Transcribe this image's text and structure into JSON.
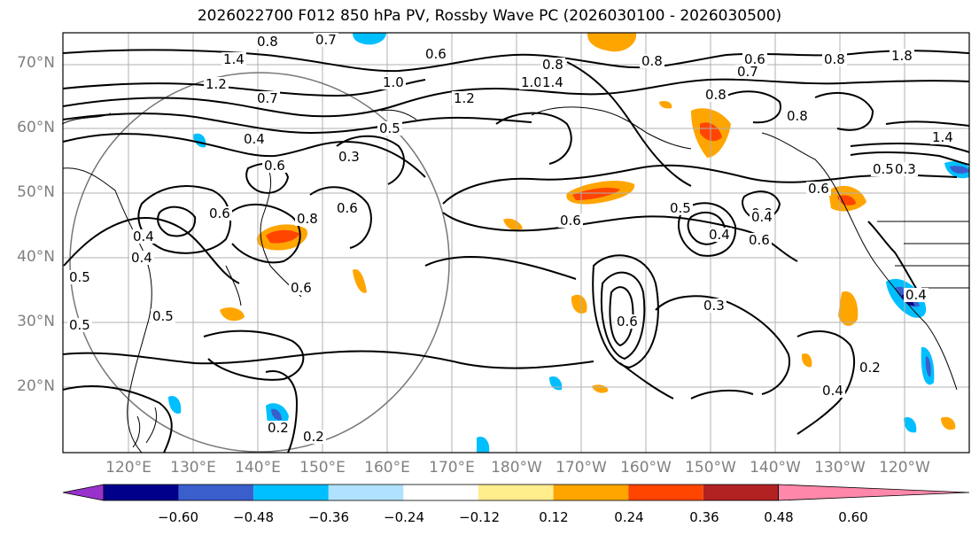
{
  "title": "2026022700 F012 850 hPa PV, Rossby Wave PC (2026030100 - 2026030500)",
  "lat_labels": [
    "70°N",
    "60°N",
    "50°N",
    "40°N",
    "30°N",
    "20°N"
  ],
  "lon_labels": [
    "120°E",
    "130°E",
    "140°E",
    "150°E",
    "160°E",
    "170°E",
    "180°W",
    "170°W",
    "160°W",
    "150°W",
    "140°W",
    "130°W",
    "120°W"
  ],
  "colorbar": {
    "colors": [
      "#9932cc",
      "#00008b",
      "#3a5fcd",
      "#00bfff",
      "#b0e2ff",
      "#ffffff",
      "#ffec8b",
      "#ffa500",
      "#ff4500",
      "#b22222",
      "#ff88aa"
    ],
    "tick_labels": [
      "−0.60",
      "−0.48",
      "−0.36",
      "−0.24",
      "−0.12",
      "0.12",
      "0.24",
      "0.36",
      "0.48",
      "0.60"
    ]
  },
  "contour_labels": [
    {
      "text": "0.8"
    },
    {
      "text": "0.7"
    },
    {
      "text": "1.4"
    },
    {
      "text": "0.6"
    },
    {
      "text": "1.2"
    },
    {
      "text": "0.7"
    },
    {
      "text": "1.0"
    },
    {
      "text": "0.4"
    },
    {
      "text": "0.5"
    },
    {
      "text": "0.6"
    },
    {
      "text": "0.3"
    },
    {
      "text": "0.6"
    },
    {
      "text": "0.4"
    },
    {
      "text": "0.6"
    },
    {
      "text": "0.8"
    },
    {
      "text": "0.4"
    },
    {
      "text": "0.5"
    },
    {
      "text": "0.5"
    },
    {
      "text": "0.5"
    },
    {
      "text": "0.6"
    },
    {
      "text": "0.3"
    },
    {
      "text": "0.2"
    },
    {
      "text": "0.2"
    },
    {
      "text": "1.2"
    },
    {
      "text": "1.0"
    },
    {
      "text": "0.6"
    },
    {
      "text": "0.5"
    },
    {
      "text": "0.4"
    },
    {
      "text": "0.6"
    },
    {
      "text": "0.8"
    },
    {
      "text": "0.8"
    },
    {
      "text": "0.7"
    },
    {
      "text": "0.6"
    },
    {
      "text": "0.8"
    },
    {
      "text": "0.6"
    },
    {
      "text": "0.3"
    },
    {
      "text": "0.2"
    },
    {
      "text": "0.4"
    },
    {
      "text": "0.4"
    },
    {
      "text": "1.8"
    },
    {
      "text": "1.4"
    },
    {
      "text": "0.8"
    },
    {
      "text": "0.5"
    },
    {
      "text": "0.4"
    },
    {
      "text": "0.6"
    },
    {
      "text": "0.8"
    },
    {
      "text": "1.4"
    },
    {
      "text": "0.8"
    }
  ],
  "anomaly_colors": {
    "positive_light": "#ffec8b",
    "positive": "#ffa500",
    "strong_positive": "#ff4500",
    "negative_light": "#b0e2ff",
    "negative": "#00bfff",
    "strong_negative": "#00008b"
  }
}
